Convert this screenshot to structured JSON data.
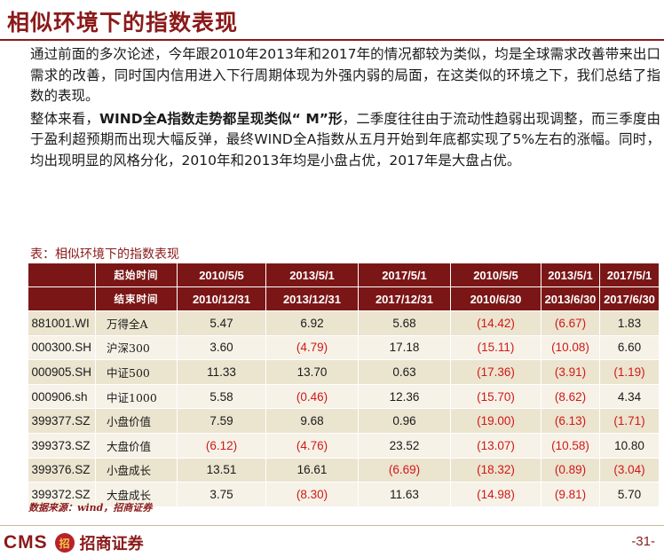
{
  "title": "相似环境下的指数表现",
  "paragraphs": {
    "p1": "通过前面的多次论述，今年跟2010年2013年和2017年的情况都较为类似，均是全球需求改善带来出口需求的改善，同时国内信用进入下行周期体现为外强内弱的局面，在这类似的环境之下，我们总结了指数的表现。",
    "p2_lead": "整体来看，",
    "p2_bold": "WIND全A指数走势都呈现类似“ M”形",
    "p2_rest": "，二季度往往由于流动性趋弱出现调整，而三季度由于盈利超预期而出现大幅反弹，最终WIND全A指数从五月开始到年底都实现了5%左右的涨幅。同时，均出现明显的风格分化，2010年和2013年均是小盘占优，2017年是大盘占优。"
  },
  "table": {
    "caption": "表：相似环境下的指数表现",
    "start_label": "起始时间",
    "end_label": "结束时间",
    "start_dates": [
      "2010/5/5",
      "2013/5/1",
      "2017/5/1",
      "2010/5/5",
      "2013/5/1",
      "2017/5/1"
    ],
    "end_dates": [
      "2010/12/31",
      "2013/12/31",
      "2017/12/31",
      "2010/6/30",
      "2013/6/30",
      "2017/6/30"
    ],
    "rows": [
      {
        "code": "881001.WI",
        "name": "万得全A",
        "values": [
          "5.47",
          "6.92",
          "5.68",
          "(14.42)",
          "(6.67)",
          "1.83"
        ]
      },
      {
        "code": "000300.SH",
        "name": "沪深300",
        "values": [
          "3.60",
          "(4.79)",
          "17.18",
          "(15.11)",
          "(10.08)",
          "6.60"
        ]
      },
      {
        "code": "000905.SH",
        "name": "中证500",
        "values": [
          "11.33",
          "13.70",
          "0.63",
          "(17.36)",
          "(3.91)",
          "(1.19)"
        ]
      },
      {
        "code": "000906.sh",
        "name": "中证1000",
        "values": [
          "5.58",
          "(0.46)",
          "12.36",
          "(15.70)",
          "(8.62)",
          "4.34"
        ]
      },
      {
        "code": "399377.SZ",
        "name": "小盘价值",
        "values": [
          "7.59",
          "9.68",
          "0.96",
          "(19.00)",
          "(6.13)",
          "(1.71)"
        ]
      },
      {
        "code": "399373.SZ",
        "name": "大盘价值",
        "values": [
          "(6.12)",
          "(4.76)",
          "23.52",
          "(13.07)",
          "(10.58)",
          "10.80"
        ]
      },
      {
        "code": "399376.SZ",
        "name": "小盘成长",
        "values": [
          "13.51",
          "16.61",
          "(6.69)",
          "(18.32)",
          "(0.89)",
          "(3.04)"
        ]
      },
      {
        "code": "399372.SZ",
        "name": "大盘成长",
        "values": [
          "3.75",
          "(8.30)",
          "11.63",
          "(14.98)",
          "(9.81)",
          "5.70"
        ]
      }
    ]
  },
  "source": "数据来源：wind，招商证券",
  "logo": {
    "cms": "CMS",
    "seal": "招",
    "cn": "招商证券"
  },
  "page_number": "-31-",
  "colors": {
    "brand": "#8B1A1A",
    "header_bg": "#7B1616",
    "negative": "#D01818",
    "row_odd": "#EBE4CF",
    "row_even": "#F6F2E7"
  }
}
